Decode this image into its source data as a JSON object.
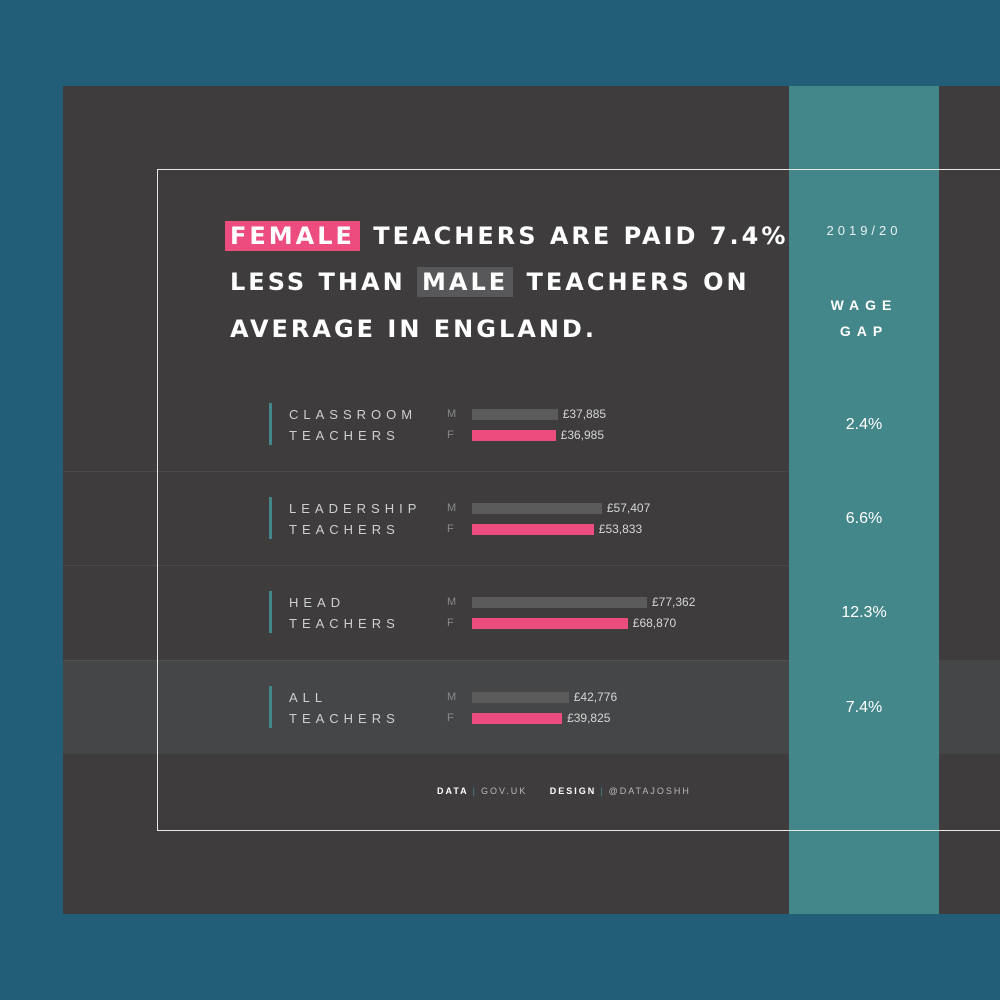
{
  "headline": {
    "line1_highlight": "FEMALE",
    "line1_rest": "TEACHERS ARE PAID 7.4%",
    "line2_pre": "LESS THAN",
    "line2_highlight": "MALE",
    "line2_rest": "TEACHERS ON",
    "line3": "AVERAGE IN ENGLAND."
  },
  "column": {
    "year": "2019/20",
    "title_line1": "WAGE",
    "title_line2": "GAP"
  },
  "legend": {
    "male": "M",
    "female": "F"
  },
  "footer": {
    "data_label": "DATA",
    "data_source": "GOV.UK",
    "design_label": "DESIGN",
    "design_credit": "@DATAJOSHH"
  },
  "colors": {
    "male_bar": "#5c5b5c",
    "female_bar": "#ec4c7e",
    "accent": "#43878a",
    "panel": "#3e3c3d",
    "background": "#235e78"
  },
  "chart_data": {
    "type": "bar",
    "orientation": "horizontal",
    "categories": [
      {
        "line1": "CLASSROOM",
        "line2": "TEACHERS"
      },
      {
        "line1": "LEADERSHIP",
        "line2": "TEACHERS"
      },
      {
        "line1": "HEAD",
        "line2": "TEACHERS"
      },
      {
        "line1": "ALL",
        "line2": "TEACHERS"
      }
    ],
    "series": [
      {
        "name": "M",
        "values": [
          37885,
          57407,
          77362,
          42776
        ],
        "labels": [
          "£37,885",
          "£57,407",
          "£77,362",
          "£42,776"
        ]
      },
      {
        "name": "F",
        "values": [
          36985,
          53833,
          68870,
          39825
        ],
        "labels": [
          "£36,985",
          "£53,833",
          "£68,870",
          "£39,825"
        ]
      }
    ],
    "wage_gap": [
      "2.4%",
      "6.6%",
      "12.3%",
      "7.4%"
    ],
    "xlim": [
      0,
      77362
    ]
  }
}
